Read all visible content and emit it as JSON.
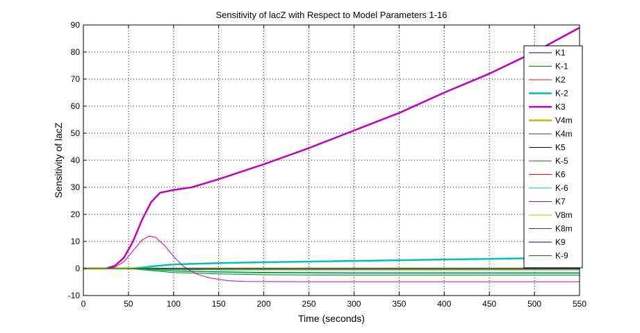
{
  "chart_data": {
    "type": "line",
    "title": "Sensitivity of lacZ with Respect to Model Parameters 1-16",
    "xlabel": "Time (seconds)",
    "ylabel": "Sensitivity of lacZ",
    "xlim": [
      0,
      550
    ],
    "ylim": [
      -10,
      90
    ],
    "xticks": [
      0,
      50,
      100,
      150,
      200,
      250,
      300,
      350,
      400,
      450,
      500,
      550
    ],
    "yticks": [
      -10,
      0,
      10,
      20,
      30,
      40,
      50,
      60,
      70,
      80,
      90
    ],
    "grid": true,
    "legend_position": "right",
    "series": [
      {
        "name": "K1",
        "color": "#00007f",
        "width": 1,
        "x": [
          0,
          550
        ],
        "y": [
          0,
          0
        ]
      },
      {
        "name": "K-1",
        "color": "#007f00",
        "width": 1,
        "x": [
          0,
          50,
          100,
          150,
          200,
          300,
          400,
          550
        ],
        "y": [
          0,
          0,
          -0.8,
          -1.2,
          -1.4,
          -1.5,
          -1.5,
          -1.5
        ]
      },
      {
        "name": "K2",
        "color": "#ff0000",
        "width": 1,
        "x": [
          0,
          550
        ],
        "y": [
          0,
          0
        ]
      },
      {
        "name": "K-2",
        "color": "#00bfbf",
        "width": 2.5,
        "x": [
          0,
          55,
          80,
          100,
          150,
          200,
          300,
          400,
          500,
          550
        ],
        "y": [
          0,
          0,
          0.9,
          1.5,
          2.0,
          2.3,
          2.8,
          3.3,
          3.8,
          4.1
        ]
      },
      {
        "name": "K3",
        "color": "#bf00bf",
        "width": 2.5,
        "x": [
          0,
          25,
          35,
          45,
          55,
          65,
          75,
          85,
          100,
          120,
          150,
          200,
          250,
          300,
          350,
          400,
          450,
          500,
          550
        ],
        "y": [
          0,
          0,
          1,
          4,
          10,
          18,
          24.5,
          28,
          29,
          30,
          33,
          38.5,
          44.5,
          51,
          57.5,
          65,
          72,
          80,
          89
        ]
      },
      {
        "name": "V4m",
        "color": "#bfbf00",
        "width": 2.5,
        "x": [
          0,
          550
        ],
        "y": [
          0,
          0
        ]
      },
      {
        "name": "K4m",
        "color": "#3f3f3f",
        "width": 1,
        "x": [
          0,
          550
        ],
        "y": [
          0,
          0
        ]
      },
      {
        "name": "K5",
        "color": "#00007f",
        "width": 1,
        "x": [
          0,
          550
        ],
        "y": [
          0,
          0
        ]
      },
      {
        "name": "K-5",
        "color": "#007f00",
        "width": 1,
        "x": [
          0,
          50,
          100,
          150,
          200,
          300,
          400,
          550
        ],
        "y": [
          0,
          0,
          -1.5,
          -2.0,
          -2.3,
          -2.5,
          -2.5,
          -2.5
        ]
      },
      {
        "name": "K6",
        "color": "#ff0000",
        "width": 1,
        "x": [
          0,
          550
        ],
        "y": [
          0,
          0
        ]
      },
      {
        "name": "K-6",
        "color": "#00bfbf",
        "width": 1,
        "x": [
          0,
          50,
          100,
          150,
          200,
          300,
          400,
          550
        ],
        "y": [
          0,
          0,
          -1.0,
          -1.4,
          -1.7,
          -1.9,
          -1.9,
          -1.9
        ]
      },
      {
        "name": "K7",
        "color": "#bf00bf",
        "width": 1,
        "x": [
          0,
          25,
          35,
          45,
          55,
          65,
          73,
          80,
          90,
          100,
          110,
          125,
          140,
          160,
          180,
          250,
          350,
          550
        ],
        "y": [
          0,
          0,
          0.5,
          2.5,
          6.5,
          10.5,
          12,
          11.5,
          8.5,
          4.5,
          1,
          -2,
          -3.5,
          -4.5,
          -4.8,
          -4.9,
          -4.9,
          -4.9
        ]
      },
      {
        "name": "V8m",
        "color": "#bfbf00",
        "width": 1,
        "x": [
          0,
          550
        ],
        "y": [
          0,
          0
        ]
      },
      {
        "name": "K8m",
        "color": "#3f3f3f",
        "width": 1,
        "x": [
          0,
          550
        ],
        "y": [
          0,
          0
        ]
      },
      {
        "name": "K9",
        "color": "#00007f",
        "width": 1,
        "x": [
          0,
          550
        ],
        "y": [
          0,
          0
        ]
      },
      {
        "name": "K-9",
        "color": "#007f00",
        "width": 1,
        "x": [
          0,
          50,
          100,
          150,
          550
        ],
        "y": [
          0,
          0,
          -0.3,
          -0.5,
          -0.5
        ]
      }
    ]
  }
}
